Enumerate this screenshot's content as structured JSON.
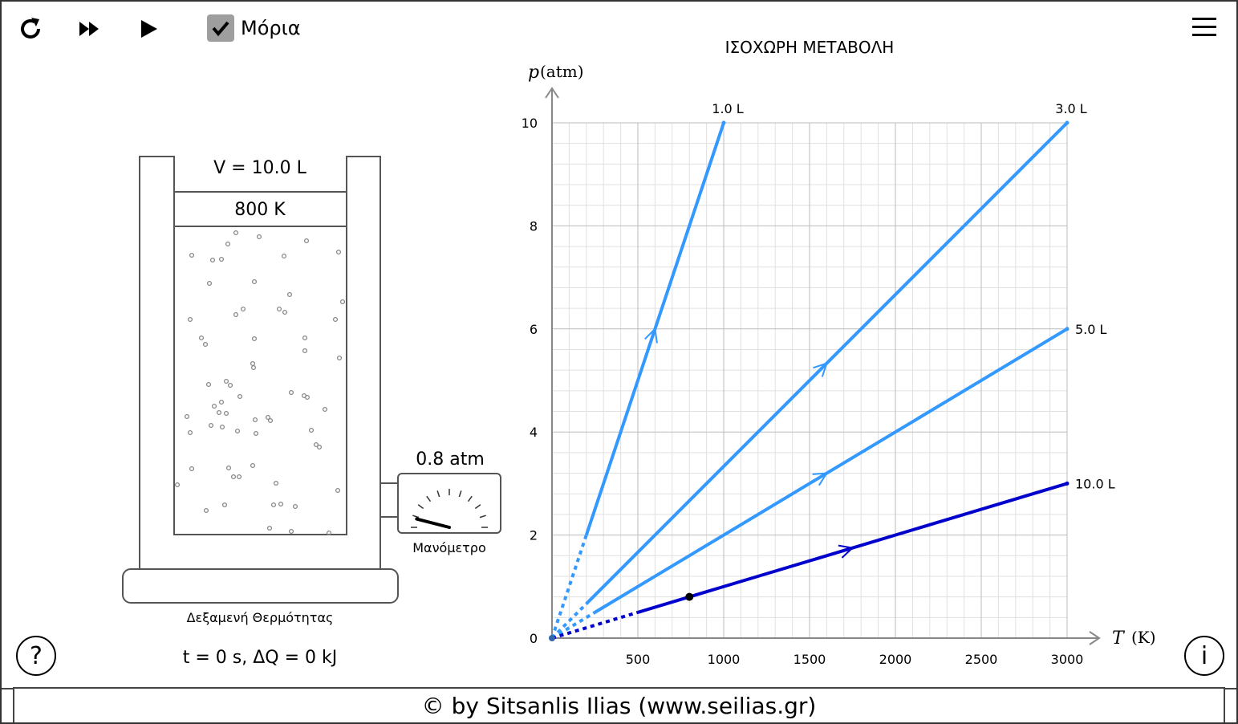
{
  "toolbar": {
    "reset_icon": "reset-icon",
    "fast_forward_icon": "fast-forward-icon",
    "play_icon": "play-icon",
    "molecules_label": "Μόρια",
    "molecules_checked": true,
    "menu_icon": "hamburger-menu-icon"
  },
  "vessel": {
    "volume_label": "V = 10.0 L",
    "temperature_label": "800 K",
    "manometer_value": "0.8 atm",
    "manometer_label": "Μανόμετρο",
    "manometer_fraction": 0.08,
    "reservoir_label": "Δεξαμενή Θερμότητας",
    "status": "t = 0 s, ΔQ = 0 kJ"
  },
  "help_button": "?",
  "info_button": "i",
  "footer": "© by Sitsanlis Ilias (www.seilias.gr)",
  "colors": {
    "line_light": "#3399ff",
    "line_dark": "#0000cc",
    "grid_major": "#bbbbbb",
    "grid_minor": "#e0e0e0"
  },
  "chart_data": {
    "type": "line",
    "title": "ΙΣΟΧΩΡΗ ΜΕΤΑΒΟΛΗ",
    "ylabel_var": "p",
    "ylabel_unit": "(atm)",
    "xlabel_var": "T",
    "xlabel_unit": "(K)",
    "xlim": [
      0,
      3000
    ],
    "ylim": [
      0,
      10
    ],
    "x_ticks": [
      "500",
      "1000",
      "1500",
      "2000",
      "2500",
      "3000"
    ],
    "y_ticks": [
      "0",
      "2",
      "4",
      "6",
      "8",
      "10"
    ],
    "grid": true,
    "series": [
      {
        "name": "1.0 L",
        "color": "#3399ff",
        "x": [
          0,
          1000
        ],
        "y": [
          0,
          10
        ],
        "dashed_until_x": 200,
        "arrow_at_x": 600
      },
      {
        "name": "3.0 L",
        "color": "#3399ff",
        "x": [
          0,
          3000
        ],
        "y": [
          0,
          10
        ],
        "dashed_until_x": 200,
        "arrow_at_x": 1600
      },
      {
        "name": "5.0 L",
        "color": "#3399ff",
        "x": [
          0,
          3000
        ],
        "y": [
          0,
          6
        ],
        "dashed_until_x": 250,
        "arrow_at_x": 1600
      },
      {
        "name": "10.0 L",
        "color": "#0000cc",
        "x": [
          0,
          3000
        ],
        "y": [
          0,
          3
        ],
        "dashed_until_x": 500,
        "arrow_at_x": 1750
      }
    ],
    "current_point": {
      "x": 800,
      "y": 0.8
    }
  }
}
